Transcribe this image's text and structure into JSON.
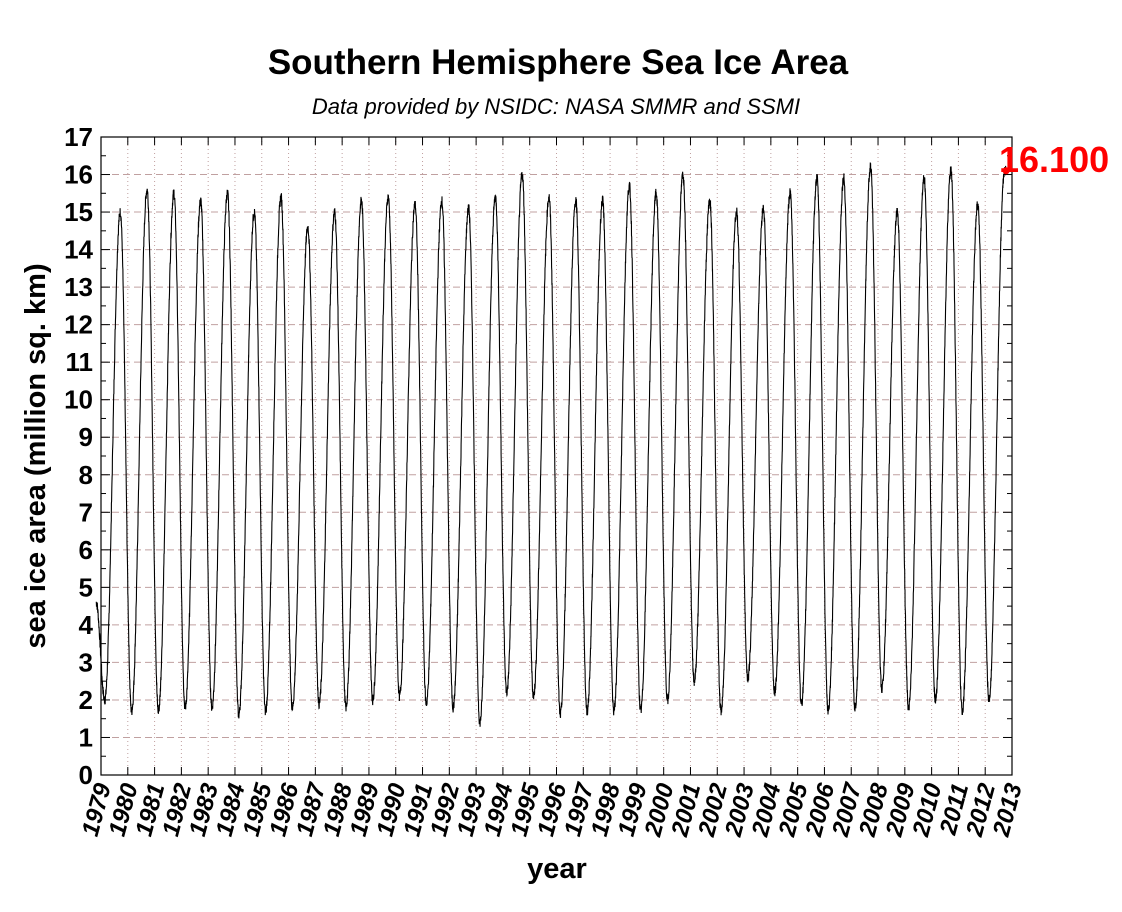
{
  "chart_data": {
    "type": "line",
    "title": "Southern Hemisphere Sea Ice Area",
    "subtitle": "Data provided by NSIDC: NASA SMMR and SSMI",
    "xlabel": "year",
    "ylabel": "sea ice area (million sq. km)",
    "xlim": [
      1979,
      2013
    ],
    "ylim": [
      0,
      17
    ],
    "grid": true,
    "x_ticks": [
      "1979",
      "1980",
      "1981",
      "1982",
      "1983",
      "1984",
      "1985",
      "1986",
      "1987",
      "1988",
      "1989",
      "1990",
      "1991",
      "1992",
      "1993",
      "1994",
      "1995",
      "1996",
      "1997",
      "1998",
      "1999",
      "2000",
      "2001",
      "2002",
      "2003",
      "2004",
      "2005",
      "2006",
      "2007",
      "2008",
      "2009",
      "2010",
      "2011",
      "2012",
      "2013"
    ],
    "y_ticks": [
      "0",
      "1",
      "2",
      "3",
      "4",
      "5",
      "6",
      "7",
      "8",
      "9",
      "10",
      "11",
      "12",
      "13",
      "14",
      "15",
      "16",
      "17"
    ],
    "annual_cycle": {
      "series_start": 1978.82,
      "series_end": 2012.78,
      "start_value": 4.6,
      "years": [
        1979,
        1980,
        1981,
        1982,
        1983,
        1984,
        1985,
        1986,
        1987,
        1988,
        1989,
        1990,
        1991,
        1992,
        1993,
        1994,
        1995,
        1996,
        1997,
        1998,
        1999,
        2000,
        2001,
        2002,
        2003,
        2004,
        2005,
        2006,
        2007,
        2008,
        2009,
        2010,
        2011,
        2012
      ],
      "annual_minimum": [
        2.0,
        1.7,
        1.7,
        1.8,
        1.8,
        1.6,
        1.7,
        1.8,
        1.9,
        1.8,
        2.0,
        2.1,
        1.9,
        1.8,
        1.4,
        2.2,
        2.1,
        1.6,
        1.7,
        1.7,
        1.7,
        2.0,
        2.5,
        1.7,
        2.6,
        2.2,
        1.9,
        1.7,
        1.8,
        2.3,
        1.8,
        2.0,
        1.7,
        2.0
      ],
      "annual_maximum": [
        15.0,
        15.6,
        15.5,
        15.3,
        15.5,
        15.0,
        15.4,
        14.6,
        15.0,
        15.3,
        15.4,
        15.2,
        15.3,
        15.1,
        15.4,
        16.0,
        15.4,
        15.3,
        15.3,
        15.7,
        15.5,
        16.0,
        15.3,
        15.0,
        15.1,
        15.5,
        15.9,
        15.9,
        16.2,
        15.0,
        15.9,
        16.1,
        15.2,
        16.1
      ]
    },
    "latest_value": 16.1,
    "latest_label": "16.100",
    "line_color": "#000000",
    "grid_color": "#c0a0a0",
    "latest_color": "#ff0000"
  }
}
